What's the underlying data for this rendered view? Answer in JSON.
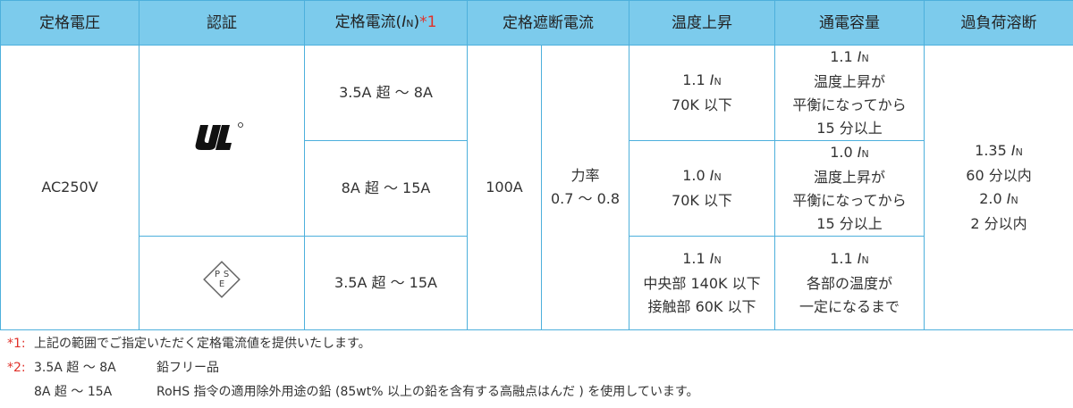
{
  "table": {
    "header": [
      "定格電圧",
      "認証",
      {
        "prefix": "定格電流(",
        "symbol": "I",
        "subscript": "N",
        "suffix": ")",
        "note": "*1"
      },
      "定格遮断電流",
      "温度上昇",
      "通電容量",
      "過負荷溶断"
    ],
    "voltage": "AC250V",
    "pse_logo": [
      "P",
      "S",
      "E"
    ],
    "breaking_current": "100A",
    "power_factor": [
      "力率",
      "0.7 ～ 0.8"
    ],
    "rows": [
      {
        "current": "3.5A 超 ～ 8A",
        "temperature": [
          {
            "prefix": "1.1 ",
            "symbol": "I",
            "subscript": "N"
          },
          "70K 以下"
        ],
        "capacity": [
          {
            "prefix": "1.1 ",
            "symbol": "I",
            "subscript": "N"
          },
          "温度上昇が",
          "平衡になってから",
          "15 分以上"
        ]
      },
      {
        "current": "8A 超 ～ 15A",
        "temperature": [
          {
            "prefix": "1.0 ",
            "symbol": "I",
            "subscript": "N"
          },
          "70K 以下"
        ],
        "capacity": [
          {
            "prefix": "1.0 ",
            "symbol": "I",
            "subscript": "N"
          },
          "温度上昇が",
          "平衡になってから",
          "15 分以上"
        ]
      },
      {
        "current": "3.5A 超 ～ 15A",
        "temperature": [
          {
            "prefix": "1.1 ",
            "symbol": "I",
            "subscript": "N"
          },
          "中央部 140K 以下",
          "接触部 60K 以下"
        ],
        "capacity": [
          {
            "prefix": "1.1 ",
            "symbol": "I",
            "subscript": "N"
          },
          "各部の温度が",
          "一定になるまで"
        ]
      }
    ],
    "overload": [
      {
        "prefix": "1.35 ",
        "symbol": "I",
        "subscript": "N"
      },
      "60 分以内",
      {
        "prefix": "2.0 ",
        "symbol": "I",
        "subscript": "N"
      },
      "2 分以内"
    ]
  },
  "notes": [
    {
      "mark": "*1:",
      "items": [
        [
          "上記の範囲でご指定いただく定格電流値を提供いたします。"
        ]
      ]
    },
    {
      "mark": "*2:",
      "items": [
        [
          "3.5A 超 ～ 8A",
          "鉛フリー品"
        ],
        [
          "8A 超 ～ 15A",
          "RoHS 指令の適用除外用途の鉛 (85wt% 以上の鉛を含有する高融点はんだ ) を使用しています。"
        ]
      ]
    }
  ]
}
